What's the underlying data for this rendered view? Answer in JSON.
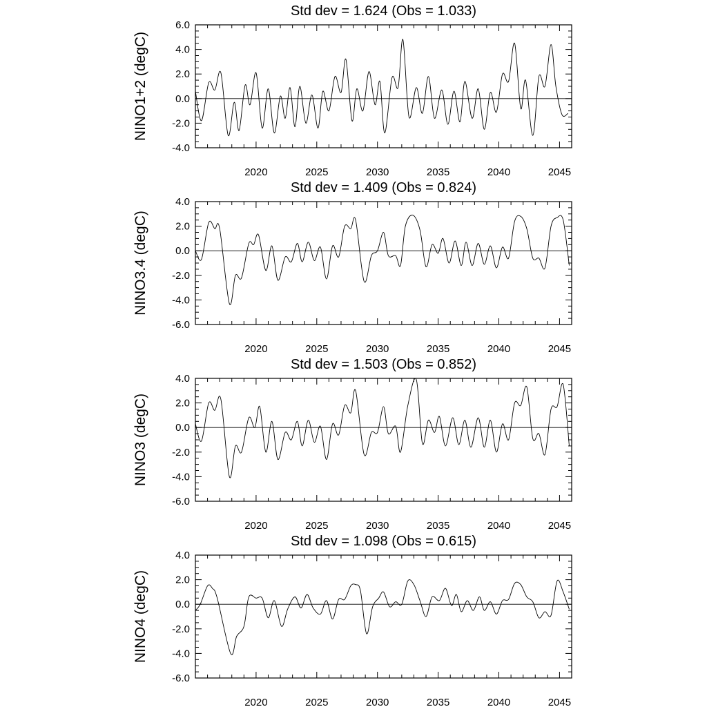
{
  "chart_data": [
    {
      "type": "line",
      "title": "Std dev = 1.624 (Obs = 1.033)",
      "ylabel": "NINO1+2 (degC)",
      "xlabel": "",
      "ylim": [
        -4.0,
        6.0
      ],
      "yticks": [
        "-4.0",
        "-2.0",
        "0.0",
        "2.0",
        "4.0",
        "6.0"
      ],
      "xlim": [
        2015.0,
        2046.0
      ],
      "xticks": [
        "2020",
        "2025",
        "2030",
        "2035",
        "2040",
        "2045"
      ],
      "reference_line": 0,
      "x": [
        2015.0,
        2015.5,
        2016.1,
        2016.6,
        2017.1,
        2017.7,
        2018.2,
        2018.6,
        2019.1,
        2019.5,
        2020.0,
        2020.5,
        2021.0,
        2021.5,
        2022.0,
        2022.4,
        2022.8,
        2023.2,
        2023.6,
        2024.1,
        2024.6,
        2025.1,
        2025.5,
        2026.0,
        2026.5,
        2027.0,
        2027.4,
        2027.9,
        2028.3,
        2028.8,
        2029.3,
        2029.8,
        2030.2,
        2030.6,
        2031.2,
        2031.7,
        2032.1,
        2032.6,
        2033.2,
        2033.7,
        2034.2,
        2034.7,
        2035.3,
        2035.8,
        2036.3,
        2036.8,
        2037.2,
        2037.8,
        2038.3,
        2038.8,
        2039.3,
        2039.8,
        2040.3,
        2040.8,
        2041.3,
        2041.8,
        2042.2,
        2042.8,
        2043.3,
        2043.8,
        2044.3,
        2044.7,
        2045.2,
        2045.7
      ],
      "values": [
        0.6,
        -1.8,
        1.3,
        0.7,
        2.1,
        -3.0,
        -0.3,
        -2.6,
        1.1,
        -0.5,
        2.1,
        -2.4,
        0.8,
        -2.8,
        0.2,
        -1.6,
        0.9,
        -2.3,
        1.0,
        -2.0,
        0.3,
        -2.4,
        0.6,
        -1.0,
        1.8,
        0.5,
        3.2,
        -1.8,
        0.8,
        -1.0,
        2.2,
        -0.5,
        1.4,
        -2.8,
        1.7,
        0.9,
        4.8,
        -1.5,
        0.9,
        -1.2,
        1.8,
        -1.6,
        0.7,
        -2.1,
        0.6,
        -1.9,
        1.4,
        -1.6,
        0.8,
        -2.5,
        0.5,
        -1.1,
        2.0,
        1.4,
        4.5,
        -0.8,
        1.5,
        -3.0,
        1.8,
        1.0,
        4.4,
        1.0,
        -1.3,
        -1.2
      ],
      "series_color": "#000000"
    },
    {
      "type": "line",
      "title": "Std dev = 1.409 (Obs = 0.824)",
      "ylabel": "NINO3.4 (degC)",
      "xlabel": "",
      "ylim": [
        -6.0,
        4.0
      ],
      "yticks": [
        "-6.0",
        "-4.0",
        "-2.0",
        "0.0",
        "2.0",
        "4.0"
      ],
      "xlim": [
        2015.0,
        2046.0
      ],
      "xticks": [
        "2020",
        "2025",
        "2030",
        "2035",
        "2040",
        "2045"
      ],
      "reference_line": 0,
      "x": [
        2015.0,
        2015.5,
        2016.1,
        2016.6,
        2017.0,
        2017.8,
        2018.3,
        2018.8,
        2019.4,
        2019.8,
        2020.2,
        2020.8,
        2021.3,
        2021.8,
        2022.4,
        2022.9,
        2023.4,
        2023.8,
        2024.3,
        2024.8,
        2025.3,
        2025.8,
        2026.3,
        2026.8,
        2027.3,
        2027.8,
        2028.2,
        2028.9,
        2029.5,
        2030.0,
        2030.5,
        2030.9,
        2031.5,
        2031.9,
        2032.3,
        2032.9,
        2033.5,
        2034.0,
        2034.5,
        2035.0,
        2035.4,
        2035.9,
        2036.4,
        2036.9,
        2037.3,
        2037.8,
        2038.3,
        2038.8,
        2039.3,
        2039.8,
        2040.3,
        2040.8,
        2041.3,
        2041.8,
        2042.3,
        2042.8,
        2043.3,
        2043.8,
        2044.3,
        2044.8,
        2045.3,
        2045.8
      ],
      "values": [
        0.0,
        -0.7,
        2.3,
        1.8,
        1.8,
        -4.3,
        -2.0,
        -2.2,
        0.6,
        0.5,
        1.3,
        -1.6,
        0.4,
        -2.4,
        -0.5,
        -0.9,
        0.6,
        -0.9,
        0.7,
        -0.8,
        0.3,
        -2.3,
        0.4,
        -0.5,
        2.0,
        1.8,
        2.5,
        -2.5,
        -0.4,
        0.0,
        1.5,
        -0.4,
        -0.4,
        -1.2,
        2.0,
        2.9,
        1.7,
        -1.3,
        0.5,
        -0.2,
        1.0,
        -1.0,
        0.8,
        -1.2,
        0.7,
        -1.2,
        0.6,
        -1.1,
        0.4,
        -1.4,
        0.3,
        -0.6,
        2.4,
        2.8,
        1.8,
        -0.6,
        -0.6,
        -1.4,
        2.0,
        2.7,
        2.5,
        -1.2
      ],
      "series_color": "#000000"
    },
    {
      "type": "line",
      "title": "Std dev = 1.503 (Obs = 0.852)",
      "ylabel": "NINO3 (degC)",
      "xlabel": "",
      "ylim": [
        -6.0,
        4.0
      ],
      "yticks": [
        "-6.0",
        "-4.0",
        "-2.0",
        "0.0",
        "2.0",
        "4.0"
      ],
      "xlim": [
        2015.0,
        2046.0
      ],
      "xticks": [
        "2020",
        "2025",
        "2030",
        "2035",
        "2040",
        "2045"
      ],
      "reference_line": 0,
      "x": [
        2015.0,
        2015.5,
        2016.1,
        2016.6,
        2017.1,
        2017.8,
        2018.3,
        2018.8,
        2019.4,
        2019.9,
        2020.3,
        2020.8,
        2021.3,
        2021.8,
        2022.4,
        2022.9,
        2023.4,
        2023.8,
        2024.3,
        2024.8,
        2025.3,
        2025.8,
        2026.3,
        2026.8,
        2027.3,
        2027.8,
        2028.2,
        2028.9,
        2029.5,
        2030.0,
        2030.5,
        2030.9,
        2031.5,
        2031.9,
        2032.5,
        2033.2,
        2033.7,
        2034.2,
        2034.7,
        2035.1,
        2035.6,
        2036.2,
        2036.7,
        2037.2,
        2037.7,
        2038.3,
        2038.8,
        2039.3,
        2039.8,
        2040.3,
        2040.8,
        2041.3,
        2041.8,
        2042.3,
        2042.8,
        2043.3,
        2043.8,
        2044.3,
        2044.8,
        2045.3,
        2045.8
      ],
      "values": [
        0.3,
        -1.1,
        2.0,
        1.4,
        2.3,
        -4.0,
        -1.5,
        -2.0,
        0.8,
        0.0,
        1.7,
        -2.0,
        0.5,
        -2.6,
        -0.4,
        -1.0,
        0.5,
        -1.5,
        0.6,
        -1.2,
        0.1,
        -2.6,
        0.3,
        -0.6,
        1.8,
        1.2,
        3.0,
        -2.2,
        -0.4,
        -0.4,
        1.7,
        -0.5,
        0.1,
        -2.0,
        1.8,
        3.9,
        -1.3,
        0.6,
        -0.4,
        0.9,
        -1.5,
        0.8,
        -1.4,
        0.6,
        -1.6,
        0.8,
        -1.6,
        0.6,
        -2.0,
        0.3,
        -1.0,
        2.0,
        1.8,
        3.3,
        -0.9,
        -0.5,
        -2.2,
        1.5,
        1.7,
        3.5,
        -1.5
      ],
      "series_color": "#000000"
    },
    {
      "type": "line",
      "title": "Std dev = 1.098 (Obs = 0.615)",
      "ylabel": "NINO4 (degC)",
      "xlabel": "",
      "ylim": [
        -6.0,
        4.0
      ],
      "yticks": [
        "-6.0",
        "-4.0",
        "-2.0",
        "0.0",
        "2.0",
        "4.0"
      ],
      "xlim": [
        2015.0,
        2046.0
      ],
      "xticks": [
        "2020",
        "2025",
        "2030",
        "2035",
        "2040",
        "2045"
      ],
      "reference_line": 0,
      "x": [
        2015.0,
        2015.4,
        2016.0,
        2016.4,
        2016.8,
        2017.9,
        2018.4,
        2019.0,
        2019.4,
        2020.0,
        2020.5,
        2021.0,
        2021.5,
        2022.1,
        2022.6,
        2023.2,
        2023.7,
        2024.2,
        2024.7,
        2025.3,
        2025.8,
        2026.3,
        2026.8,
        2027.3,
        2027.8,
        2028.2,
        2028.6,
        2029.1,
        2029.6,
        2030.1,
        2030.5,
        2031.0,
        2031.5,
        2032.0,
        2032.5,
        2033.0,
        2033.5,
        2034.0,
        2034.5,
        2035.1,
        2035.6,
        2036.1,
        2036.5,
        2036.9,
        2037.4,
        2037.9,
        2038.4,
        2038.8,
        2039.3,
        2039.8,
        2040.3,
        2040.8,
        2041.3,
        2041.8,
        2042.3,
        2042.8,
        2043.3,
        2043.8,
        2044.3,
        2044.8,
        2045.3,
        2045.8
      ],
      "values": [
        -0.5,
        0.0,
        1.5,
        1.3,
        0.5,
        -4.0,
        -2.6,
        -1.8,
        0.6,
        0.5,
        0.5,
        -1.1,
        0.3,
        -1.8,
        -0.4,
        0.6,
        -0.3,
        0.8,
        -0.3,
        -0.8,
        0.3,
        -1.2,
        0.4,
        0.4,
        1.5,
        1.6,
        1.1,
        -2.4,
        -0.2,
        0.5,
        1.0,
        -0.2,
        0.2,
        0.0,
        1.9,
        1.6,
        0.3,
        -1.0,
        0.6,
        0.3,
        1.3,
        -0.1,
        0.8,
        -0.6,
        0.3,
        -0.5,
        0.6,
        -0.5,
        0.2,
        -0.8,
        0.3,
        0.4,
        1.7,
        1.6,
        0.6,
        0.2,
        -1.1,
        -0.6,
        -0.9,
        1.9,
        1.0,
        -0.4
      ],
      "series_color": "#000000"
    }
  ]
}
